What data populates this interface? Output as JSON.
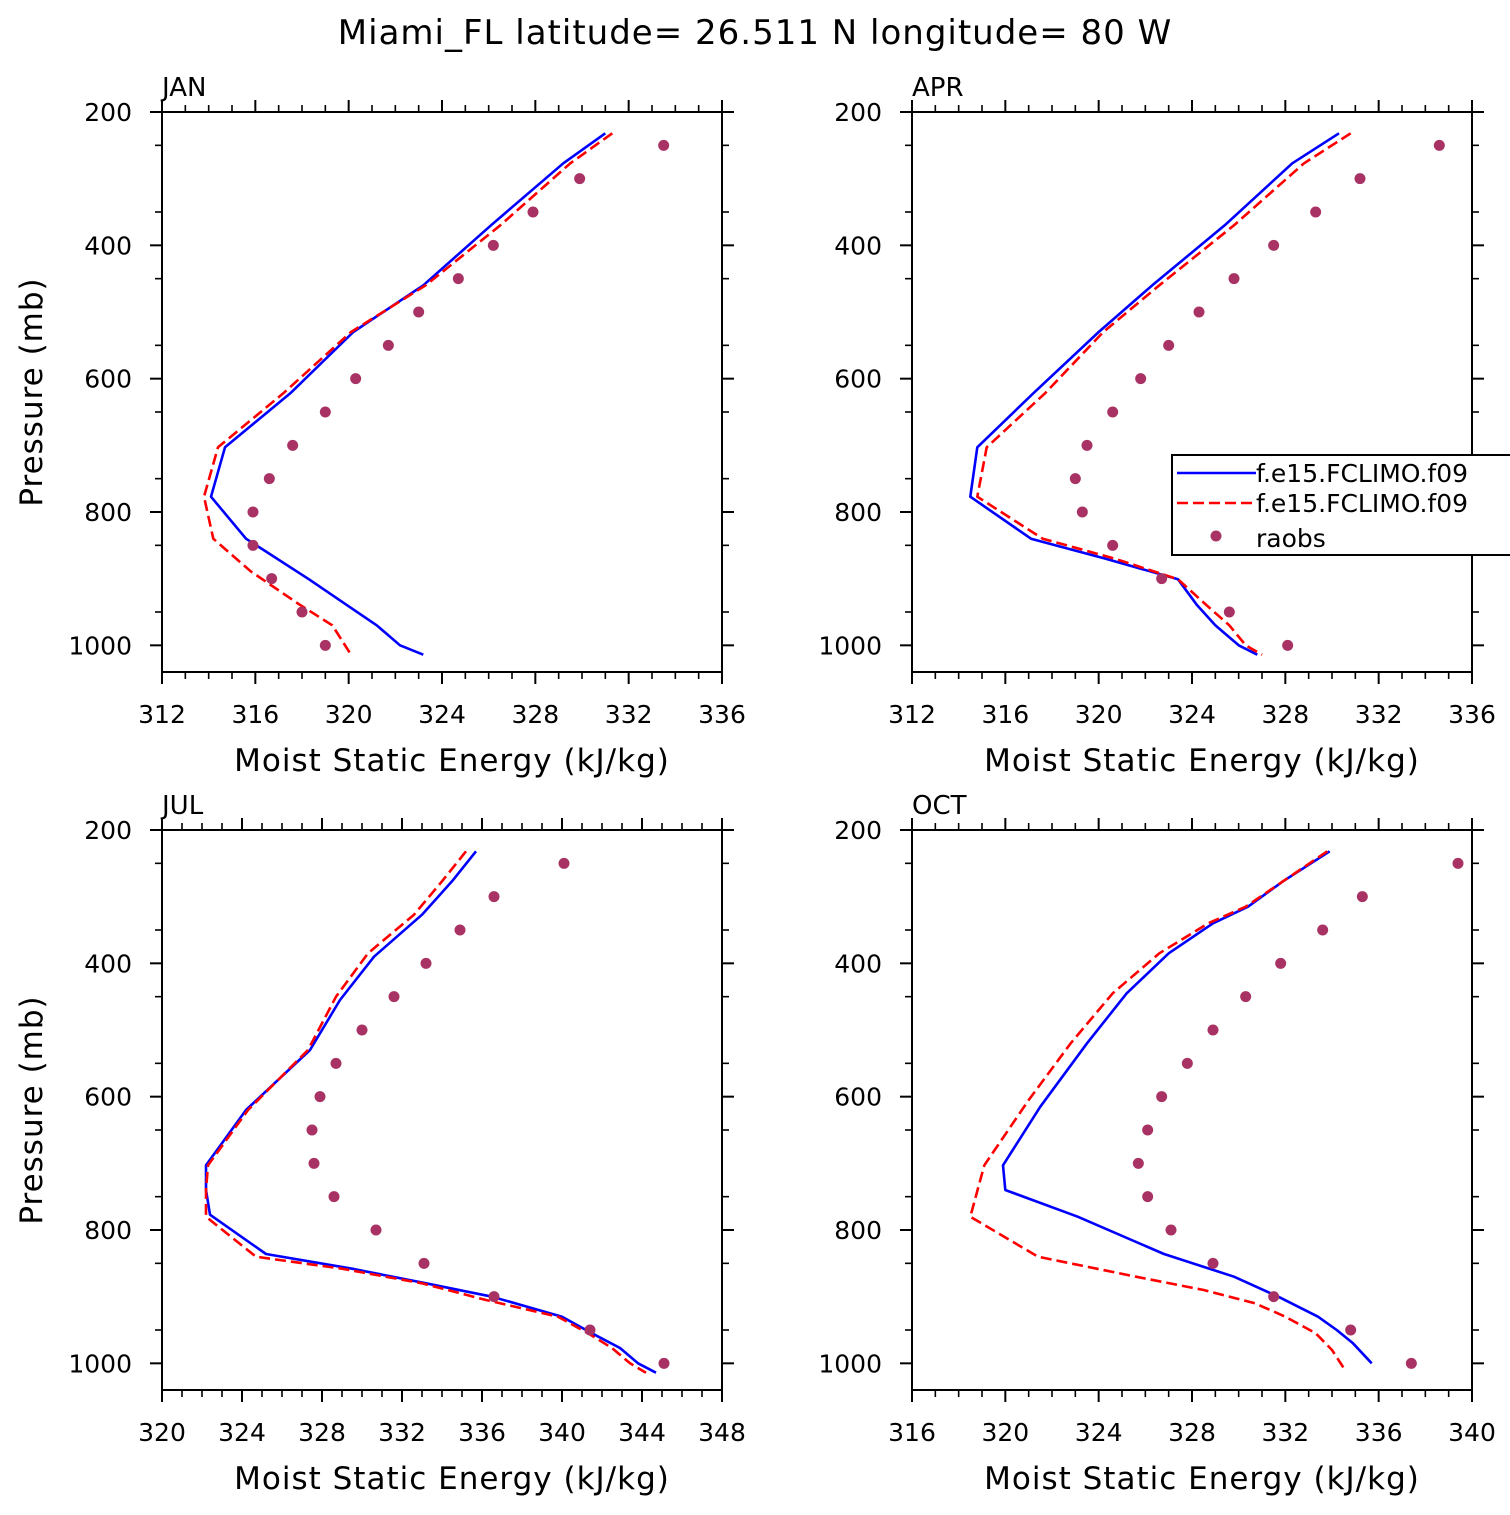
{
  "title": "Miami_FL  latitude= 26.511 N longitude= 80 W",
  "legend": {
    "entries": [
      {
        "label": "f.e15.FCLIMO.f09",
        "style": "solid",
        "color": "#0000ff"
      },
      {
        "label": "f.e15.FCLIMO.f09",
        "style": "dashed",
        "color": "#ff0000"
      },
      {
        "label": "raobs",
        "style": "marker",
        "color": "#a83263"
      }
    ]
  },
  "colors": {
    "model1": "#0000ff",
    "model2": "#ff0000",
    "raobs": "#a83263"
  },
  "chart_data": [
    {
      "type": "line",
      "panel": "JAN",
      "xlabel": "Moist Static Energy (kJ/kg)",
      "ylabel": "Pressure (mb)",
      "xlim": [
        312,
        336
      ],
      "ylim": [
        1000,
        200
      ],
      "xticks": [
        "312",
        "316",
        "320",
        "324",
        "328",
        "332",
        "336"
      ],
      "yticks": [
        "200",
        "400",
        "600",
        "800",
        "1000"
      ],
      "series": [
        {
          "key": "model1",
          "style": "solid",
          "x": [
            331.0,
            329.2,
            326.1,
            323.2,
            320.2,
            317.5,
            314.7,
            314.1,
            315.6,
            318.3,
            319.9,
            321.2,
            322.2,
            323.2
          ],
          "y": [
            232,
            277,
            370,
            460,
            530,
            622,
            703,
            777,
            840,
            901,
            939,
            970,
            1000,
            1014
          ]
        },
        {
          "key": "model2",
          "style": "dashed",
          "x": [
            331.3,
            329.5,
            326.5,
            323.3,
            320.1,
            317.2,
            314.4,
            313.8,
            314.2,
            315.8,
            317.9,
            319.3,
            319.7,
            320.1
          ],
          "y": [
            232,
            277,
            370,
            460,
            530,
            622,
            703,
            777,
            840,
            889,
            939,
            970,
            992,
            1014
          ]
        },
        {
          "key": "raobs",
          "style": "marker",
          "x": [
            333.5,
            329.9,
            327.9,
            326.2,
            324.7,
            323.0,
            321.7,
            320.3,
            319.0,
            317.6,
            316.6,
            315.9,
            315.9,
            316.7,
            318.0,
            319.0
          ],
          "y": [
            250,
            300,
            350,
            400,
            450,
            500,
            550,
            600,
            650,
            700,
            750,
            800,
            850,
            900,
            950,
            1000
          ]
        }
      ]
    },
    {
      "type": "line",
      "panel": "APR",
      "xlabel": "Moist Static Energy (kJ/kg)",
      "ylabel": "",
      "xlim": [
        312,
        336
      ],
      "ylim": [
        1000,
        200
      ],
      "xticks": [
        "312",
        "316",
        "320",
        "324",
        "328",
        "332",
        "336"
      ],
      "yticks": [
        "200",
        "400",
        "600",
        "800",
        "1000"
      ],
      "series": [
        {
          "key": "model1",
          "style": "solid",
          "x": [
            330.3,
            328.3,
            325.4,
            322.3,
            320.0,
            317.2,
            314.8,
            314.5,
            317.1,
            320.3,
            323.4,
            324.2,
            325.0,
            326.0,
            326.8
          ],
          "y": [
            232,
            277,
            370,
            460,
            530,
            622,
            703,
            777,
            840,
            870,
            901,
            939,
            970,
            1000,
            1014
          ]
        },
        {
          "key": "model2",
          "style": "dashed",
          "x": [
            330.8,
            328.8,
            325.8,
            322.6,
            320.2,
            317.7,
            315.2,
            314.8,
            317.6,
            320.7,
            323.4,
            324.6,
            325.6,
            326.3,
            327.0
          ],
          "y": [
            232,
            277,
            370,
            460,
            530,
            622,
            703,
            777,
            840,
            870,
            901,
            939,
            970,
            1000,
            1014
          ]
        },
        {
          "key": "raobs",
          "style": "marker",
          "x": [
            334.6,
            331.2,
            329.3,
            327.5,
            325.8,
            324.3,
            323.0,
            321.8,
            320.6,
            319.5,
            319.0,
            319.3,
            320.6,
            322.7,
            325.6,
            328.1
          ],
          "y": [
            250,
            300,
            350,
            400,
            450,
            500,
            550,
            600,
            650,
            700,
            750,
            800,
            850,
            900,
            950,
            1000
          ]
        }
      ]
    },
    {
      "type": "line",
      "panel": "JUL",
      "xlabel": "Moist Static Energy (kJ/kg)",
      "ylabel": "Pressure (mb)",
      "xlim": [
        320,
        348
      ],
      "ylim": [
        1000,
        200
      ],
      "xticks": [
        "320",
        "324",
        "328",
        "332",
        "336",
        "340",
        "344",
        "348"
      ],
      "yticks": [
        "200",
        "400",
        "600",
        "800",
        "1000"
      ],
      "series": [
        {
          "key": "model1",
          "style": "solid",
          "x": [
            335.7,
            334.5,
            333.0,
            330.6,
            328.9,
            327.4,
            324.2,
            322.2,
            322.2,
            322.4,
            325.2,
            329.5,
            333.2,
            336.5,
            340.0,
            341.5,
            342.9,
            343.8,
            344.7
          ],
          "y": [
            232,
            277,
            327,
            390,
            455,
            530,
            620,
            703,
            740,
            777,
            836,
            858,
            880,
            900,
            930,
            955,
            977,
            1000,
            1014
          ]
        },
        {
          "key": "model2",
          "style": "dashed",
          "x": [
            335.2,
            334.0,
            332.6,
            330.3,
            328.7,
            327.3,
            324.3,
            322.3,
            322.2,
            322.2,
            324.7,
            329.0,
            333.0,
            336.2,
            339.8,
            341.3,
            342.5,
            343.4,
            344.2
          ],
          "y": [
            232,
            277,
            327,
            385,
            450,
            530,
            620,
            703,
            740,
            780,
            840,
            858,
            880,
            905,
            930,
            955,
            977,
            1000,
            1014
          ]
        },
        {
          "key": "raobs",
          "style": "marker",
          "x": [
            340.1,
            336.6,
            334.9,
            333.2,
            331.6,
            330.0,
            328.7,
            327.9,
            327.5,
            327.6,
            328.6,
            330.7,
            333.1,
            336.6,
            341.4,
            345.1
          ],
          "y": [
            250,
            300,
            350,
            400,
            450,
            500,
            550,
            600,
            650,
            700,
            750,
            800,
            850,
            900,
            950,
            1000
          ]
        }
      ]
    },
    {
      "type": "line",
      "panel": "OCT",
      "xlabel": "Moist Static Energy (kJ/kg)",
      "ylabel": "",
      "xlim": [
        316,
        340
      ],
      "ylim": [
        1000,
        200
      ],
      "xticks": [
        "316",
        "320",
        "324",
        "328",
        "332",
        "336",
        "340"
      ],
      "yticks": [
        "200",
        "400",
        "600",
        "800",
        "1000"
      ],
      "series": [
        {
          "key": "model1",
          "style": "solid",
          "x": [
            333.9,
            331.9,
            330.4,
            328.9,
            327.0,
            325.2,
            323.5,
            321.5,
            319.9,
            320.0,
            323.1,
            326.8,
            329.8,
            331.7,
            333.4,
            334.2,
            334.9,
            335.7
          ],
          "y": [
            232,
            277,
            315,
            340,
            385,
            445,
            520,
            615,
            703,
            740,
            780,
            836,
            870,
            900,
            930,
            950,
            970,
            1000
          ]
        },
        {
          "key": "model2",
          "style": "dashed",
          "x": [
            333.8,
            331.9,
            330.3,
            328.7,
            326.6,
            324.6,
            322.8,
            321.0,
            319.1,
            318.5,
            321.4,
            325.6,
            328.5,
            330.7,
            332.0,
            333.3,
            334.0,
            334.5
          ],
          "y": [
            232,
            277,
            315,
            340,
            385,
            445,
            520,
            605,
            703,
            780,
            840,
            870,
            890,
            910,
            930,
            955,
            980,
            1007
          ]
        },
        {
          "key": "raobs",
          "style": "marker",
          "x": [
            339.4,
            335.3,
            333.6,
            331.8,
            330.3,
            328.9,
            327.8,
            326.7,
            326.1,
            325.7,
            326.1,
            327.1,
            328.9,
            331.5,
            334.8,
            337.4
          ],
          "y": [
            250,
            300,
            350,
            400,
            450,
            500,
            550,
            600,
            650,
            700,
            750,
            800,
            850,
            900,
            950,
            1000
          ]
        }
      ]
    }
  ]
}
